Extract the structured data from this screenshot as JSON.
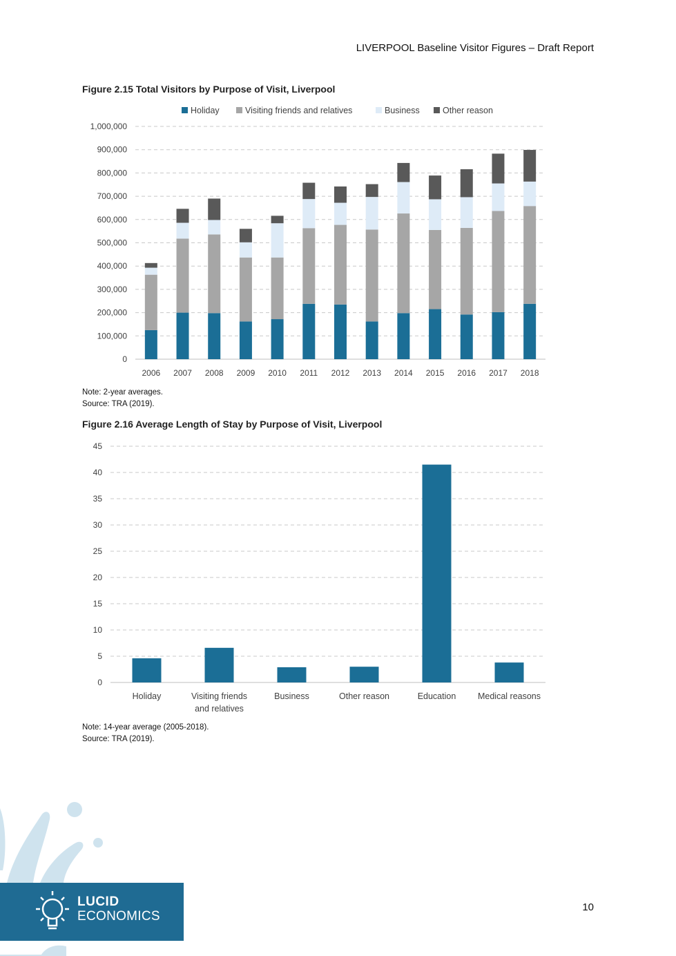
{
  "header": {
    "title": "LIVERPOOL Baseline Visitor Figures – Draft Report"
  },
  "figure1": {
    "title": "Figure 2.15 Total Visitors by Purpose of Visit, Liverpool",
    "note": "Note: 2-year averages.",
    "source": "Source: TRA (2019)."
  },
  "figure2": {
    "title": "Figure 2.16 Average Length of Stay by Purpose of Visit, Liverpool",
    "note": "Note: 14-year average (2005-2018).",
    "source": "Source: TRA (2019)."
  },
  "page_number": "10",
  "logo": {
    "line1": "LUCID",
    "line2": "ECONOMICS"
  },
  "colors": {
    "holiday": "#1b6e96",
    "vfr": "#a6a6a6",
    "business": "#deebf7",
    "other": "#595959",
    "logo_bg": "#1f6b93",
    "logo_splash": "#cfe3ee"
  },
  "chart_data": [
    {
      "type": "bar",
      "stacked": true,
      "title": "Figure 2.15 Total Visitors by Purpose of Visit, Liverpool",
      "categories": [
        "2006",
        "2007",
        "2008",
        "2009",
        "2010",
        "2011",
        "2012",
        "2013",
        "2014",
        "2015",
        "2016",
        "2017",
        "2018"
      ],
      "series": [
        {
          "name": "Holiday",
          "values": [
            125000,
            200000,
            198000,
            162000,
            172000,
            238000,
            235000,
            162000,
            198000,
            215000,
            192000,
            202000,
            238000
          ]
        },
        {
          "name": "Visiting friends and relatives",
          "values": [
            238000,
            318000,
            338000,
            275000,
            265000,
            325000,
            342000,
            395000,
            428000,
            340000,
            372000,
            435000,
            420000
          ]
        },
        {
          "name": "Business",
          "values": [
            30000,
            68000,
            62000,
            65000,
            147000,
            125000,
            95000,
            140000,
            135000,
            132000,
            132000,
            118000,
            105000
          ]
        },
        {
          "name": "Other reason",
          "values": [
            20000,
            60000,
            92000,
            58000,
            32000,
            70000,
            70000,
            55000,
            82000,
            102000,
            120000,
            128000,
            136000
          ]
        }
      ],
      "ylim": [
        0,
        1000000
      ],
      "yticks": [
        "0",
        "100,000",
        "200,000",
        "300,000",
        "400,000",
        "500,000",
        "600,000",
        "700,000",
        "800,000",
        "900,000",
        "1,000,000"
      ],
      "legend_position": "top",
      "grid": true
    },
    {
      "type": "bar",
      "title": "Figure 2.16 Average Length of Stay by Purpose of Visit, Liverpool",
      "categories": [
        "Holiday",
        "Visiting friends and relatives",
        "Business",
        "Other reason",
        "Education",
        "Medical reasons"
      ],
      "category_lines": [
        [
          "Holiday"
        ],
        [
          "Visiting friends",
          "and relatives"
        ],
        [
          "Business"
        ],
        [
          "Other reason"
        ],
        [
          "Education"
        ],
        [
          "Medical reasons"
        ]
      ],
      "values": [
        4.6,
        6.6,
        2.9,
        3.0,
        41.5,
        3.8
      ],
      "ylim": [
        0,
        45
      ],
      "yticks": [
        "0",
        "5",
        "10",
        "15",
        "20",
        "25",
        "30",
        "35",
        "40",
        "45"
      ],
      "grid": true
    }
  ]
}
